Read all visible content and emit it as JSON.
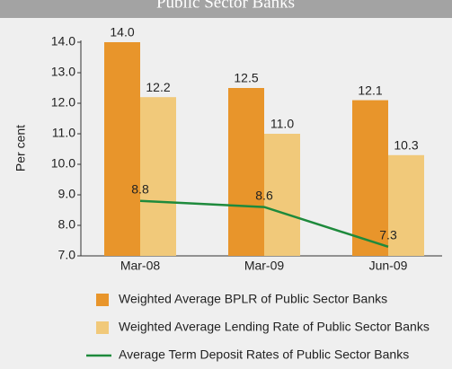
{
  "chart_data": {
    "type": "bar",
    "title": "Public Sector Banks",
    "ylabel": "Per cent",
    "categories": [
      "Mar-08",
      "Mar-09",
      "Jun-09"
    ],
    "series": [
      {
        "name": "Weighted Average BPLR of Public Sector Banks",
        "type": "bar",
        "color": "#e8952b",
        "values": [
          14.0,
          12.5,
          12.1
        ],
        "value_labels": [
          "14.0",
          "12.5",
          "12.1"
        ]
      },
      {
        "name": "Weighted Average Lending Rate of Public Sector Banks",
        "type": "bar",
        "color": "#f1c97a",
        "values": [
          12.2,
          11.0,
          10.3
        ],
        "value_labels": [
          "12.2",
          "11.0",
          "10.3"
        ]
      },
      {
        "name": "Average Term Deposit Rates of Public Sector Banks",
        "type": "line",
        "color": "#1e8a3c",
        "values": [
          8.8,
          8.6,
          7.3
        ],
        "value_labels": [
          "8.8",
          "8.6",
          "7.3"
        ]
      }
    ],
    "ylim": [
      7,
      14
    ],
    "yticks": [
      {
        "value": 7,
        "label": "7.0"
      },
      {
        "value": 8,
        "label": "8.0"
      },
      {
        "value": 9,
        "label": "9.0"
      },
      {
        "value": 10,
        "label": "10.0"
      },
      {
        "value": 11,
        "label": "11.0"
      },
      {
        "value": 12,
        "label": "12.0"
      },
      {
        "value": 13,
        "label": "13.0"
      },
      {
        "value": 14,
        "label": "14.0"
      }
    ],
    "grid": false,
    "legend": "bottom"
  }
}
